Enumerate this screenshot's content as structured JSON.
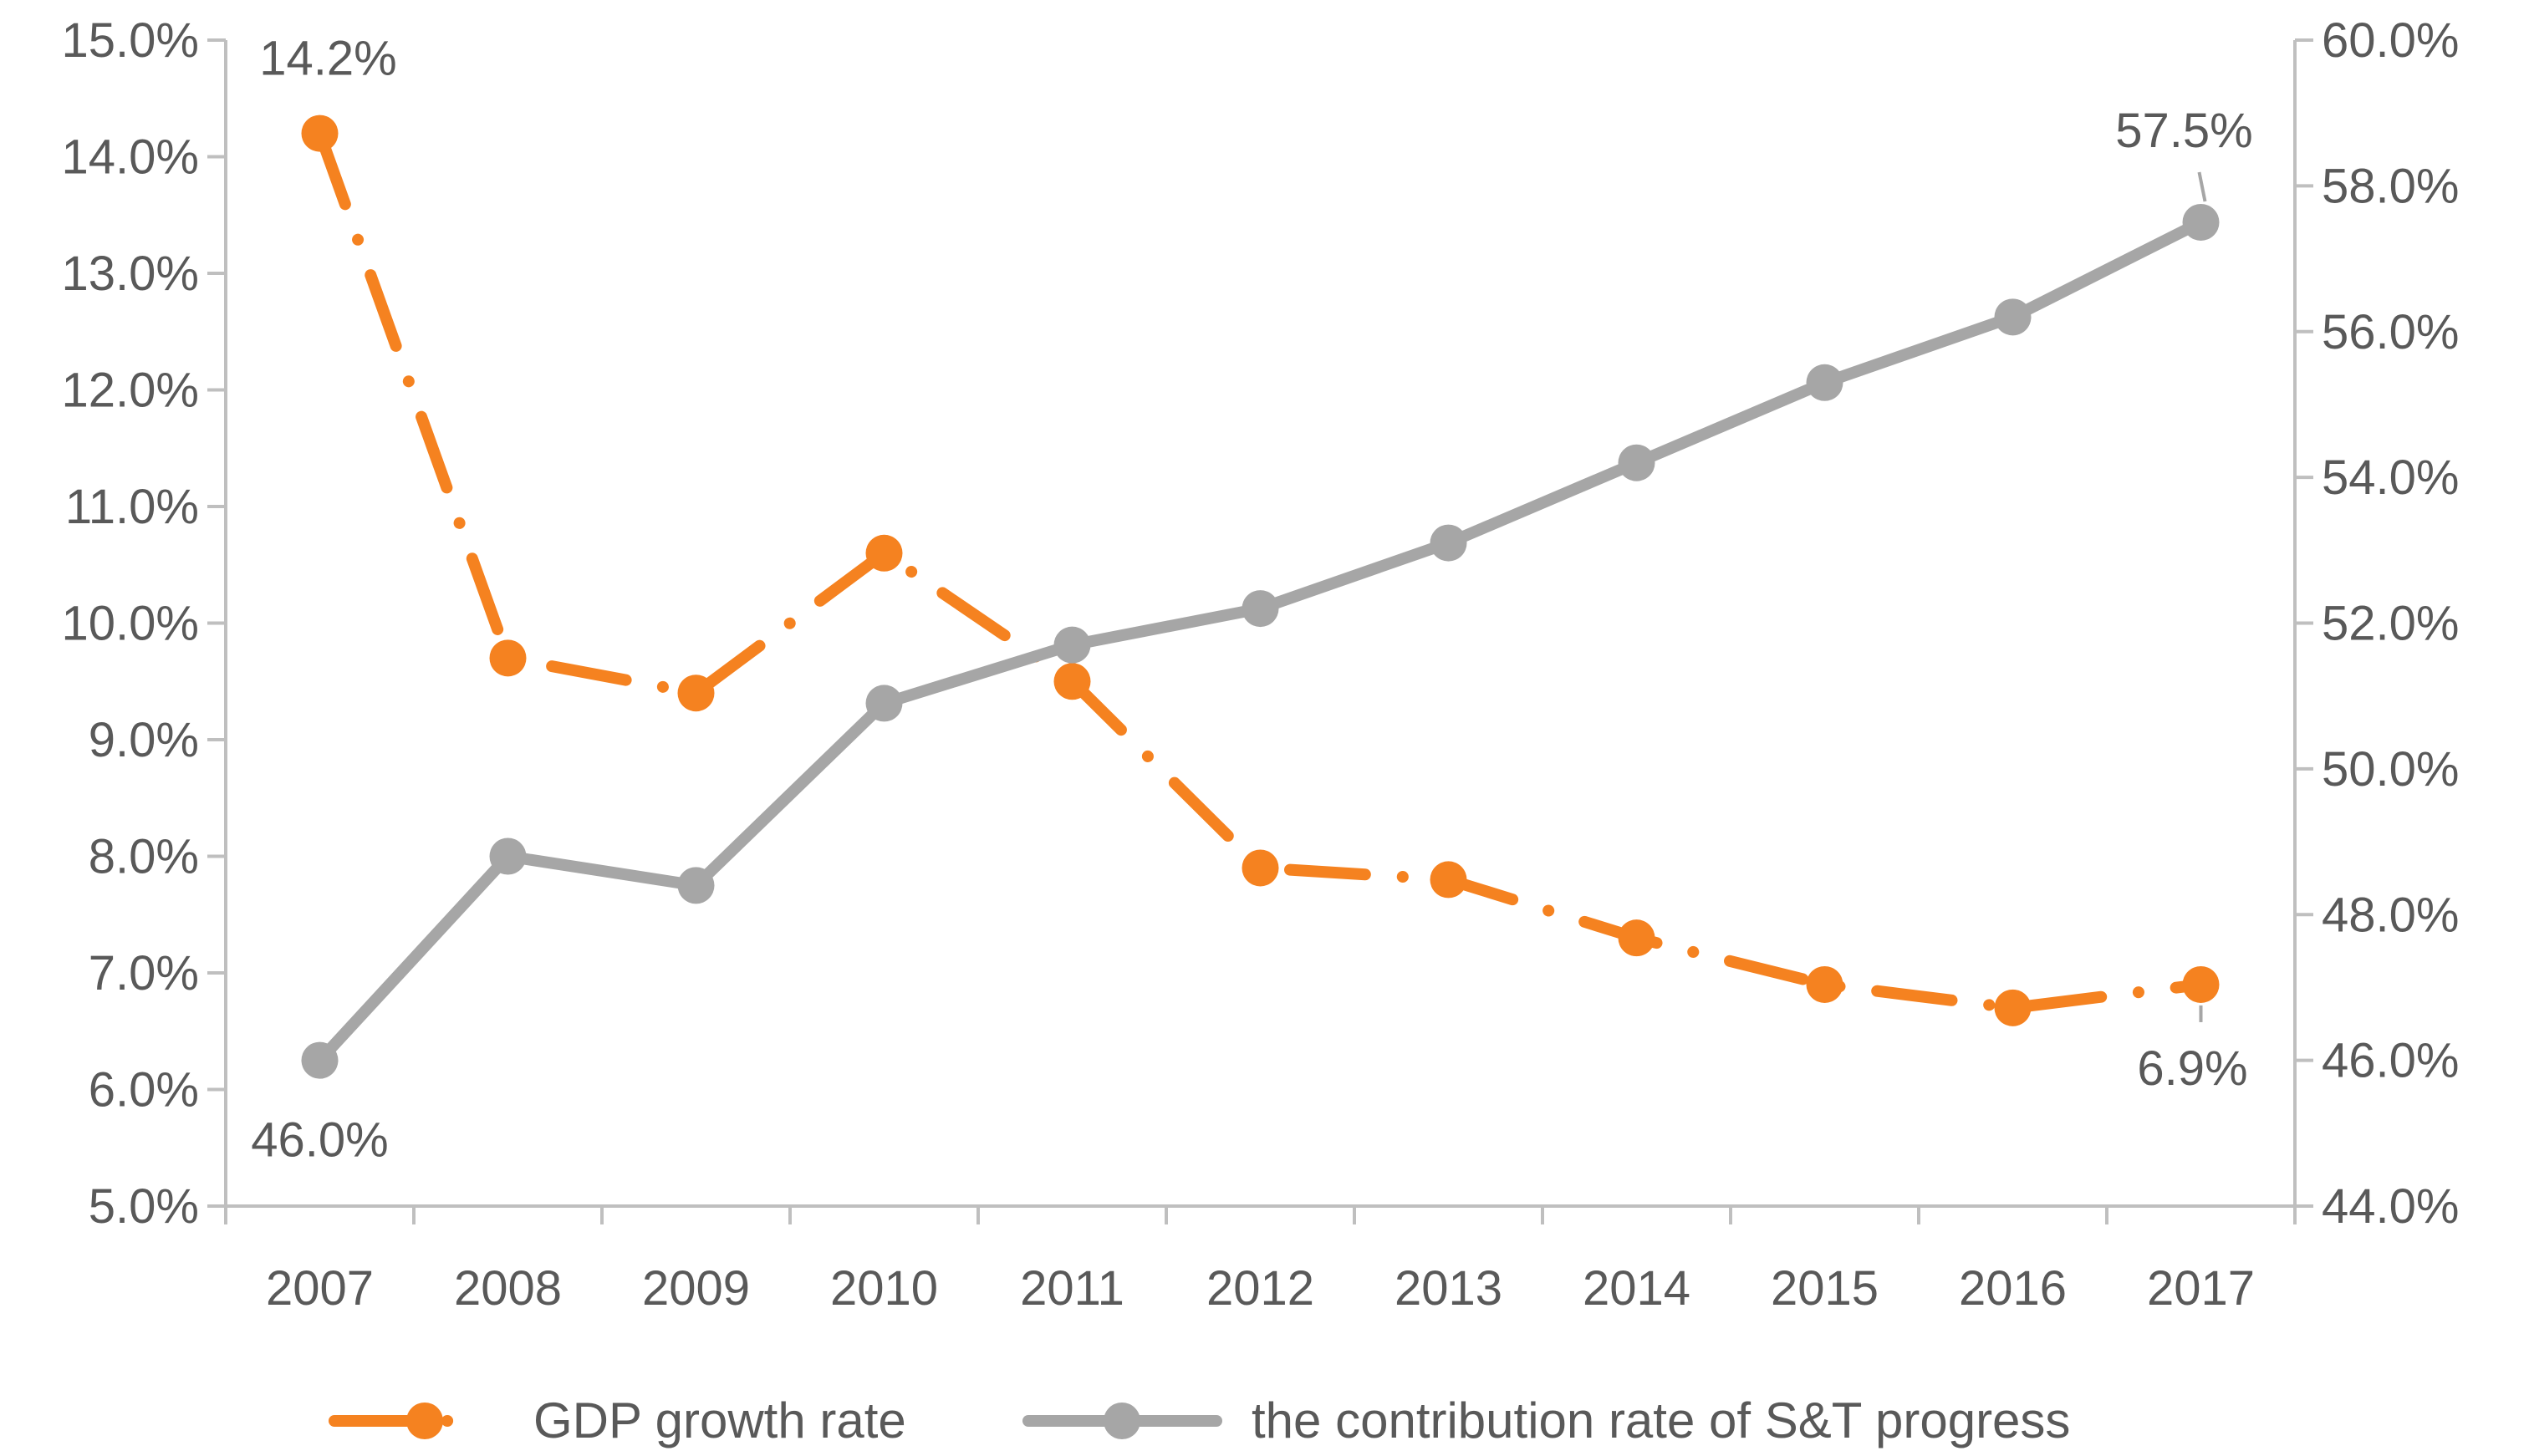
{
  "chart_data": {
    "type": "line",
    "title": "",
    "categories": [
      "2007",
      "2008",
      "2009",
      "2010",
      "2011",
      "2012",
      "2013",
      "2014",
      "2015",
      "2016",
      "2017"
    ],
    "series": [
      {
        "name": "GDP growth rate",
        "axis": "left",
        "values": [
          14.2,
          9.7,
          9.4,
          10.6,
          9.5,
          7.9,
          7.8,
          7.3,
          6.9,
          6.7,
          6.9
        ],
        "color": "#F58220",
        "style": "dash-dot"
      },
      {
        "name": "the contribution rate of S&T progress",
        "axis": "right",
        "values": [
          46.0,
          48.8,
          48.4,
          50.9,
          51.7,
          52.2,
          53.1,
          54.2,
          55.3,
          56.2,
          57.5
        ],
        "color": "#A6A6A6",
        "style": "solid"
      }
    ],
    "left_axis": {
      "min": 5,
      "max": 15,
      "step": 1,
      "tick_labels": [
        "5.0%",
        "6.0%",
        "7.0%",
        "8.0%",
        "9.0%",
        "10.0%",
        "11.0%",
        "12.0%",
        "13.0%",
        "14.0%",
        "15.0%"
      ]
    },
    "right_axis": {
      "min": 44,
      "max": 60,
      "step": 2,
      "tick_labels": [
        "44.0%",
        "46.0%",
        "48.0%",
        "50.0%",
        "52.0%",
        "54.0%",
        "56.0%",
        "58.0%",
        "60.0%"
      ]
    },
    "data_labels": [
      {
        "text": "14.2%",
        "series": 0,
        "index": 0
      },
      {
        "text": "6.9%",
        "series": 0,
        "index": 10
      },
      {
        "text": "46.0%",
        "series": 1,
        "index": 0
      },
      {
        "text": "57.5%",
        "series": 1,
        "index": 10
      }
    ],
    "legend": "bottom",
    "grid": false,
    "axis_color": "#BFBFBF"
  }
}
